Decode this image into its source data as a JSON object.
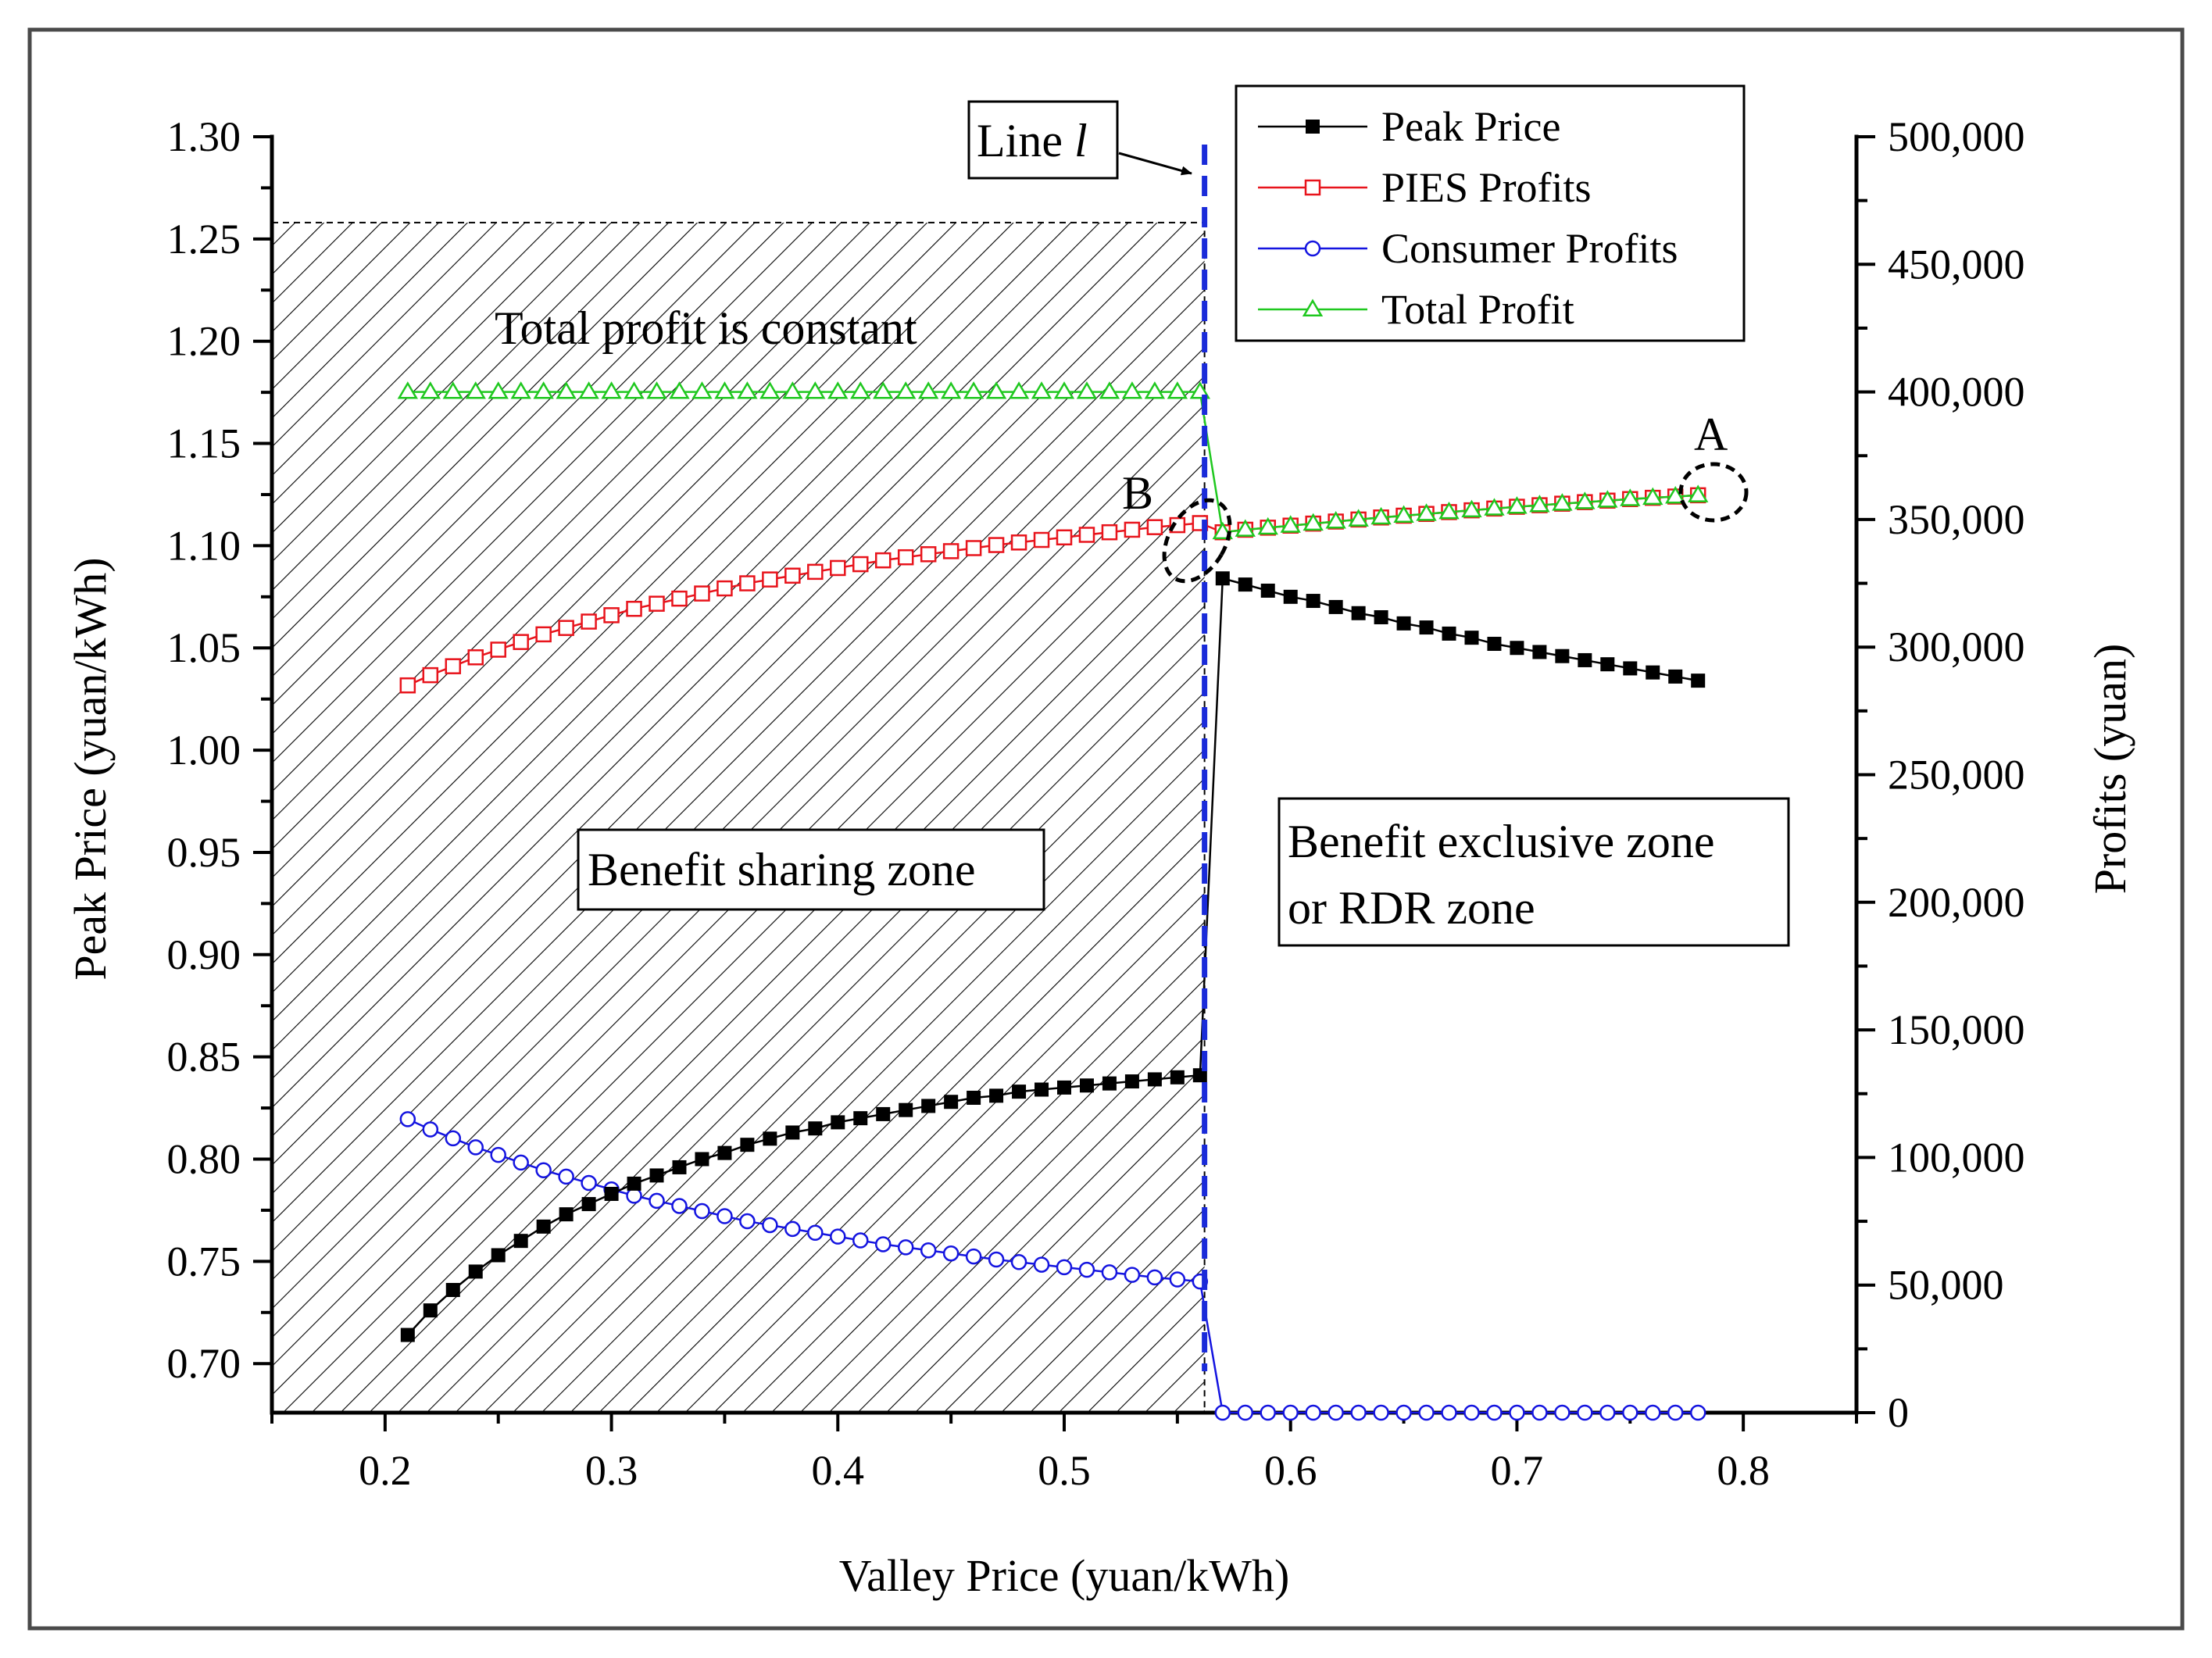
{
  "chart_data": {
    "type": "line",
    "title": "",
    "xlabel": "Valley Price (yuan/kWh)",
    "ylabel_left": "Peak Price (yuan/kWh)",
    "ylabel_right": "Profits (yuan)",
    "xlim": [
      0.15,
      0.85
    ],
    "ylim_left": [
      0.676,
      1.3
    ],
    "ylim_right": [
      0,
      500000
    ],
    "x_ticks": [
      0.2,
      0.3,
      0.4,
      0.5,
      0.6,
      0.7,
      0.8
    ],
    "x_tick_labels": [
      "0.2",
      "0.3",
      "0.4",
      "0.5",
      "0.6",
      "0.7",
      "0.8"
    ],
    "y_left_ticks": [
      0.7,
      0.75,
      0.8,
      0.85,
      0.9,
      0.95,
      1.0,
      1.05,
      1.1,
      1.15,
      1.2,
      1.25,
      1.3
    ],
    "y_left_tick_labels": [
      "0.70",
      "0.75",
      "0.80",
      "0.85",
      "0.90",
      "0.95",
      "1.00",
      "1.05",
      "1.10",
      "1.15",
      "1.20",
      "1.25",
      "1.30"
    ],
    "y_right_ticks": [
      0,
      50000,
      100000,
      150000,
      200000,
      250000,
      300000,
      350000,
      400000,
      450000,
      500000
    ],
    "y_right_tick_labels": [
      "0",
      "50,000",
      "100,000",
      "150,000",
      "200,000",
      "250,000",
      "300,000",
      "350,000",
      "400,000",
      "450,000",
      "500,000"
    ],
    "legend": [
      "Peak Price",
      "PIES Profits",
      "Consumer Profits",
      "Total Profit"
    ],
    "legend_position": "top-right",
    "series": [
      {
        "name": "Peak Price",
        "axis": "left",
        "color": "#000000",
        "marker": "filled-square",
        "x": [
          0.21,
          0.22,
          0.23,
          0.24,
          0.25,
          0.26,
          0.27,
          0.28,
          0.29,
          0.3,
          0.31,
          0.32,
          0.33,
          0.34,
          0.35,
          0.36,
          0.37,
          0.38,
          0.39,
          0.4,
          0.41,
          0.42,
          0.43,
          0.44,
          0.45,
          0.46,
          0.47,
          0.48,
          0.49,
          0.5,
          0.51,
          0.52,
          0.53,
          0.54,
          0.55,
          0.56,
          0.57,
          0.58,
          0.59,
          0.6,
          0.61,
          0.62,
          0.63,
          0.64,
          0.65,
          0.66,
          0.67,
          0.68,
          0.69,
          0.7,
          0.71,
          0.72,
          0.73,
          0.74,
          0.75,
          0.76,
          0.77,
          0.78
        ],
        "values": [
          0.714,
          0.726,
          0.736,
          0.745,
          0.753,
          0.76,
          0.767,
          0.773,
          0.778,
          0.783,
          0.788,
          0.792,
          0.796,
          0.8,
          0.803,
          0.807,
          0.81,
          0.813,
          0.815,
          0.818,
          0.82,
          0.822,
          0.824,
          0.826,
          0.828,
          0.83,
          0.831,
          0.833,
          0.834,
          0.835,
          0.836,
          0.837,
          0.838,
          0.839,
          0.84,
          0.841,
          1.084,
          1.081,
          1.078,
          1.075,
          1.073,
          1.07,
          1.067,
          1.065,
          1.062,
          1.06,
          1.057,
          1.055,
          1.052,
          1.05,
          1.048,
          1.046,
          1.044,
          1.042,
          1.04,
          1.038,
          1.036,
          1.034
        ]
      },
      {
        "name": "PIES Profits",
        "axis": "right",
        "color": "#e8141c",
        "marker": "open-square",
        "x": [
          0.21,
          0.22,
          0.23,
          0.24,
          0.25,
          0.26,
          0.27,
          0.28,
          0.29,
          0.3,
          0.31,
          0.32,
          0.33,
          0.34,
          0.35,
          0.36,
          0.37,
          0.38,
          0.39,
          0.4,
          0.41,
          0.42,
          0.43,
          0.44,
          0.45,
          0.46,
          0.47,
          0.48,
          0.49,
          0.5,
          0.51,
          0.52,
          0.53,
          0.54,
          0.55,
          0.56,
          0.57,
          0.58,
          0.59,
          0.6,
          0.61,
          0.62,
          0.63,
          0.64,
          0.65,
          0.66,
          0.67,
          0.68,
          0.69,
          0.7,
          0.71,
          0.72,
          0.73,
          0.74,
          0.75,
          0.76,
          0.77,
          0.78
        ],
        "values": [
          285000,
          289000,
          292500,
          296000,
          299000,
          302000,
          305000,
          307500,
          310000,
          312500,
          315000,
          317000,
          319000,
          321000,
          323000,
          325000,
          326500,
          328000,
          329500,
          331000,
          332500,
          334000,
          335200,
          336400,
          337600,
          338800,
          340000,
          341000,
          342000,
          343000,
          344000,
          345000,
          346000,
          347000,
          347800,
          348600,
          345000,
          346000,
          346800,
          347600,
          348400,
          349200,
          350000,
          350800,
          351500,
          352200,
          352900,
          353600,
          354300,
          355000,
          355600,
          356200,
          356800,
          357400,
          358000,
          358500,
          359000,
          359500
        ]
      },
      {
        "name": "Consumer Profits",
        "axis": "right",
        "color": "#1414e0",
        "marker": "open-circle",
        "x": [
          0.21,
          0.22,
          0.23,
          0.24,
          0.25,
          0.26,
          0.27,
          0.28,
          0.29,
          0.3,
          0.31,
          0.32,
          0.33,
          0.34,
          0.35,
          0.36,
          0.37,
          0.38,
          0.39,
          0.4,
          0.41,
          0.42,
          0.43,
          0.44,
          0.45,
          0.46,
          0.47,
          0.48,
          0.49,
          0.5,
          0.51,
          0.52,
          0.53,
          0.54,
          0.55,
          0.56,
          0.57,
          0.58,
          0.59,
          0.6,
          0.61,
          0.62,
          0.63,
          0.64,
          0.65,
          0.66,
          0.67,
          0.68,
          0.69,
          0.7,
          0.71,
          0.72,
          0.73,
          0.74,
          0.75,
          0.76,
          0.77,
          0.78
        ],
        "values": [
          115000,
          111000,
          107500,
          104000,
          101000,
          98000,
          95000,
          92500,
          90000,
          87500,
          85000,
          83000,
          81000,
          79000,
          77000,
          75000,
          73500,
          72000,
          70500,
          69000,
          67500,
          66000,
          64800,
          63600,
          62400,
          61200,
          60000,
          59000,
          58000,
          57000,
          56000,
          55000,
          54000,
          53000,
          52200,
          51400,
          0,
          0,
          0,
          0,
          0,
          0,
          0,
          0,
          0,
          0,
          0,
          0,
          0,
          0,
          0,
          0,
          0,
          0,
          0,
          0,
          0,
          0
        ]
      },
      {
        "name": "Total Profit",
        "axis": "right",
        "color": "#1fc81f",
        "marker": "open-triangle",
        "x": [
          0.21,
          0.22,
          0.23,
          0.24,
          0.25,
          0.26,
          0.27,
          0.28,
          0.29,
          0.3,
          0.31,
          0.32,
          0.33,
          0.34,
          0.35,
          0.36,
          0.37,
          0.38,
          0.39,
          0.4,
          0.41,
          0.42,
          0.43,
          0.44,
          0.45,
          0.46,
          0.47,
          0.48,
          0.49,
          0.5,
          0.51,
          0.52,
          0.53,
          0.54,
          0.55,
          0.56,
          0.57,
          0.58,
          0.59,
          0.6,
          0.61,
          0.62,
          0.63,
          0.64,
          0.65,
          0.66,
          0.67,
          0.68,
          0.69,
          0.7,
          0.71,
          0.72,
          0.73,
          0.74,
          0.75,
          0.76,
          0.77,
          0.78
        ],
        "values": [
          400000,
          400000,
          400000,
          400000,
          400000,
          400000,
          400000,
          400000,
          400000,
          400000,
          400000,
          400000,
          400000,
          400000,
          400000,
          400000,
          400000,
          400000,
          400000,
          400000,
          400000,
          400000,
          400000,
          400000,
          400000,
          400000,
          400000,
          400000,
          400000,
          400000,
          400000,
          400000,
          400000,
          400000,
          400000,
          400000,
          345000,
          346000,
          346800,
          347600,
          348400,
          349200,
          350000,
          350800,
          351500,
          352200,
          352900,
          353600,
          354300,
          355000,
          355600,
          356200,
          356800,
          357400,
          358000,
          358500,
          359000,
          359500
        ]
      }
    ],
    "line_l": {
      "x": 0.562,
      "label_text": "Line ",
      "label_italic": "l"
    },
    "shaded_zone": {
      "x_from": 0.15,
      "x_to": 0.562,
      "y_top": 1.258
    },
    "annotations": {
      "total_constant": "Total profit is constant",
      "sharing_zone": "Benefit sharing zone",
      "exclusive_zone_line1": "Benefit exclusive zone",
      "exclusive_zone_line2": "or RDR zone",
      "point_a": "A",
      "point_b": "B"
    },
    "grid": false
  }
}
